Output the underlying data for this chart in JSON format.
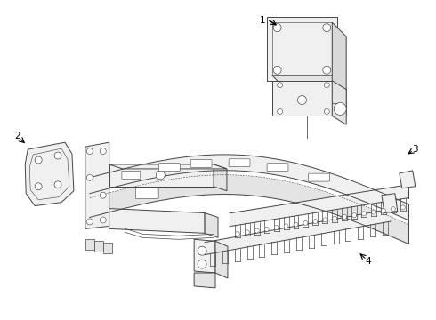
{
  "bg_color": "#ffffff",
  "line_color": "#444444",
  "lw": 0.7,
  "label_color": "#000000",
  "label_fontsize": 7.5,
  "fig_w": 4.9,
  "fig_h": 3.6,
  "dpi": 100
}
